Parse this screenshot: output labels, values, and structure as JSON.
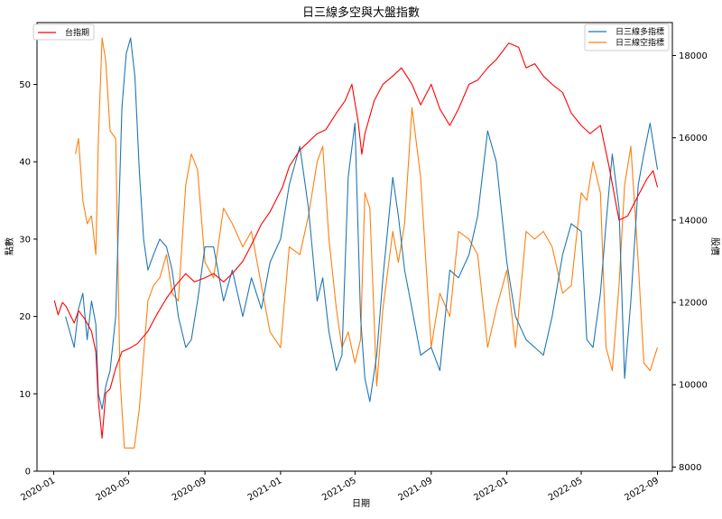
{
  "chart_data": {
    "type": "line",
    "title": "日三線多空與大盤指數",
    "xlabel": "日期",
    "ylabel_left": "點數",
    "ylabel_right": "股價",
    "x_ticks": [
      "2020-01",
      "2020-05",
      "2020-09",
      "2021-01",
      "2021-05",
      "2021-09",
      "2022-01",
      "2022-05",
      "2022-09"
    ],
    "ylim_left": [
      0,
      58
    ],
    "ylim_right": [
      7900,
      18800
    ],
    "yticks_left": [
      0,
      10,
      20,
      30,
      40,
      50
    ],
    "yticks_right": [
      8000,
      10000,
      12000,
      14000,
      16000,
      18000
    ],
    "colors": {
      "taiex": "#ff0000",
      "long": "#1f77b4",
      "short": "#ff7f0e"
    },
    "legend_left": [
      "台指期"
    ],
    "legend_right": [
      "日三線多指標",
      "日三線空指標"
    ],
    "series": [
      {
        "name": "台指期",
        "axis": "right",
        "x": [
          "2020-01-02",
          "2020-01-08",
          "2020-01-15",
          "2020-01-21",
          "2020-02-03",
          "2020-02-10",
          "2020-02-20",
          "2020-03-02",
          "2020-03-09",
          "2020-03-13",
          "2020-03-19",
          "2020-03-25",
          "2020-04-01",
          "2020-04-10",
          "2020-04-20",
          "2020-05-04",
          "2020-05-15",
          "2020-06-01",
          "2020-06-15",
          "2020-07-01",
          "2020-07-15",
          "2020-08-01",
          "2020-08-15",
          "2020-09-01",
          "2020-09-15",
          "2020-10-01",
          "2020-10-15",
          "2020-11-01",
          "2020-11-15",
          "2020-12-01",
          "2020-12-15",
          "2021-01-04",
          "2021-01-15",
          "2021-02-01",
          "2021-02-15",
          "2021-03-01",
          "2021-03-15",
          "2021-04-01",
          "2021-04-15",
          "2021-04-26",
          "2021-05-06",
          "2021-05-12",
          "2021-05-17",
          "2021-06-01",
          "2021-06-15",
          "2021-07-01",
          "2021-07-15",
          "2021-08-01",
          "2021-08-15",
          "2021-09-01",
          "2021-09-15",
          "2021-10-01",
          "2021-10-15",
          "2021-11-01",
          "2021-11-15",
          "2021-12-01",
          "2021-12-15",
          "2022-01-04",
          "2022-01-20",
          "2022-02-01",
          "2022-02-15",
          "2022-03-01",
          "2022-03-15",
          "2022-04-01",
          "2022-04-15",
          "2022-05-01",
          "2022-05-15",
          "2022-06-01",
          "2022-06-15",
          "2022-07-01",
          "2022-07-15",
          "2022-08-01",
          "2022-08-15",
          "2022-08-25",
          "2022-09-01"
        ],
        "values": [
          12050,
          11700,
          12000,
          11900,
          11500,
          11800,
          11600,
          11300,
          10800,
          9600,
          8700,
          9800,
          9900,
          10400,
          10800,
          10900,
          11000,
          11300,
          11700,
          12100,
          12400,
          12700,
          12500,
          12600,
          12700,
          12500,
          12700,
          13000,
          13400,
          13900,
          14200,
          14800,
          15300,
          15700,
          15900,
          16100,
          16200,
          16600,
          16900,
          17300,
          16400,
          15600,
          16100,
          16900,
          17300,
          17500,
          17700,
          17300,
          16800,
          17300,
          16700,
          16300,
          16700,
          17300,
          17400,
          17700,
          17900,
          18300,
          18200,
          17700,
          17800,
          17500,
          17300,
          17100,
          16600,
          16300,
          16100,
          16300,
          15300,
          14000,
          14100,
          14600,
          15000,
          15200,
          14800
        ]
      },
      {
        "name": "日三線多指標",
        "axis": "left",
        "x": [
          "2020-01-20",
          "2020-02-03",
          "2020-02-10",
          "2020-02-17",
          "2020-02-24",
          "2020-03-02",
          "2020-03-09",
          "2020-03-13",
          "2020-03-19",
          "2020-03-25",
          "2020-04-01",
          "2020-04-10",
          "2020-04-20",
          "2020-04-27",
          "2020-05-04",
          "2020-05-11",
          "2020-05-18",
          "2020-05-25",
          "2020-06-01",
          "2020-06-10",
          "2020-06-20",
          "2020-07-01",
          "2020-07-10",
          "2020-07-20",
          "2020-08-01",
          "2020-08-10",
          "2020-08-20",
          "2020-09-01",
          "2020-09-15",
          "2020-10-01",
          "2020-10-15",
          "2020-11-01",
          "2020-11-15",
          "2020-12-01",
          "2020-12-15",
          "2021-01-01",
          "2021-01-15",
          "2021-02-01",
          "2021-02-15",
          "2021-03-01",
          "2021-03-10",
          "2021-03-20",
          "2021-04-01",
          "2021-04-10",
          "2021-04-20",
          "2021-05-01",
          "2021-05-10",
          "2021-05-17",
          "2021-05-25",
          "2021-06-05",
          "2021-06-15",
          "2021-07-01",
          "2021-07-10",
          "2021-07-20",
          "2021-08-01",
          "2021-08-15",
          "2021-09-01",
          "2021-09-15",
          "2021-10-01",
          "2021-10-15",
          "2021-11-01",
          "2021-11-15",
          "2021-12-01",
          "2021-12-15",
          "2022-01-01",
          "2022-01-15",
          "2022-02-01",
          "2022-02-15",
          "2022-03-01",
          "2022-03-15",
          "2022-04-01",
          "2022-04-15",
          "2022-05-01",
          "2022-05-10",
          "2022-05-20",
          "2022-06-01",
          "2022-06-10",
          "2022-06-20",
          "2022-07-01",
          "2022-07-10",
          "2022-07-20",
          "2022-08-01",
          "2022-08-10",
          "2022-08-20",
          "2022-09-01"
        ],
        "values": [
          20,
          16,
          21,
          23,
          17,
          22,
          19,
          10,
          8,
          11,
          13,
          20,
          47,
          54,
          56,
          51,
          39,
          30,
          26,
          28,
          30,
          29,
          26,
          20,
          16,
          17,
          22,
          29,
          29,
          22,
          26,
          20,
          25,
          21,
          27,
          30,
          37,
          42,
          34,
          22,
          25,
          18,
          13,
          15,
          38,
          45,
          20,
          12,
          9,
          15,
          25,
          38,
          33,
          26,
          21,
          15,
          16,
          13,
          26,
          25,
          28,
          33,
          44,
          40,
          27,
          20,
          17,
          16,
          15,
          20,
          28,
          32,
          31,
          17,
          16,
          23,
          32,
          41,
          34,
          12,
          22,
          37,
          41,
          45,
          39
        ]
      },
      {
        "name": "日三線空指標",
        "axis": "left",
        "x": [
          "2020-02-05",
          "2020-02-10",
          "2020-02-17",
          "2020-02-24",
          "2020-03-02",
          "2020-03-09",
          "2020-03-13",
          "2020-03-19",
          "2020-03-25",
          "2020-04-01",
          "2020-04-10",
          "2020-04-17",
          "2020-04-24",
          "2020-05-01",
          "2020-05-10",
          "2020-05-18",
          "2020-05-25",
          "2020-06-01",
          "2020-06-10",
          "2020-06-20",
          "2020-07-01",
          "2020-07-10",
          "2020-07-20",
          "2020-08-01",
          "2020-08-10",
          "2020-08-20",
          "2020-09-01",
          "2020-09-15",
          "2020-10-01",
          "2020-10-15",
          "2020-11-01",
          "2020-11-15",
          "2020-12-01",
          "2020-12-15",
          "2021-01-01",
          "2021-01-15",
          "2021-02-01",
          "2021-02-15",
          "2021-03-01",
          "2021-03-10",
          "2021-03-20",
          "2021-04-01",
          "2021-04-10",
          "2021-04-20",
          "2021-05-01",
          "2021-05-10",
          "2021-05-17",
          "2021-05-25",
          "2021-06-05",
          "2021-06-15",
          "2021-07-01",
          "2021-07-10",
          "2021-07-20",
          "2021-08-01",
          "2021-08-15",
          "2021-09-01",
          "2021-09-15",
          "2021-10-01",
          "2021-10-15",
          "2021-11-01",
          "2021-11-15",
          "2021-12-01",
          "2021-12-15",
          "2022-01-01",
          "2022-01-15",
          "2022-02-01",
          "2022-02-15",
          "2022-03-01",
          "2022-03-15",
          "2022-04-01",
          "2022-04-15",
          "2022-05-01",
          "2022-05-10",
          "2022-05-20",
          "2022-06-01",
          "2022-06-10",
          "2022-06-20",
          "2022-07-01",
          "2022-07-10",
          "2022-07-20",
          "2022-08-01",
          "2022-08-10",
          "2022-08-20",
          "2022-09-01"
        ],
        "values": [
          41,
          43,
          35,
          32,
          33,
          28,
          43,
          56,
          53,
          44,
          43,
          12,
          3,
          3,
          3,
          8,
          15,
          22,
          24,
          25,
          28,
          23,
          22,
          37,
          41,
          39,
          27,
          25,
          34,
          32,
          29,
          31,
          24,
          18,
          16,
          29,
          28,
          33,
          40,
          42,
          30,
          21,
          16,
          18,
          14,
          17,
          36,
          34,
          11,
          21,
          31,
          27,
          32,
          47,
          38,
          16,
          23,
          20,
          31,
          30,
          28,
          16,
          21,
          26,
          16,
          31,
          30,
          31,
          29,
          23,
          24,
          36,
          35,
          40,
          36,
          16,
          13,
          24,
          37,
          42,
          27,
          14,
          13,
          16
        ]
      }
    ]
  }
}
